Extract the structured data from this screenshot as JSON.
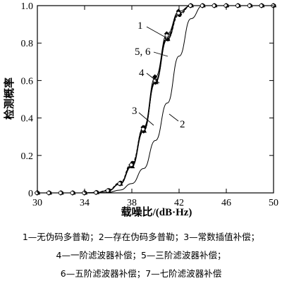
{
  "chart_data": {
    "type": "line",
    "xlabel": "载噪比/(dB·Hz)",
    "ylabel": "检测概率",
    "xlim": [
      30,
      50
    ],
    "ylim": [
      0,
      1.0
    ],
    "x_ticks": [
      "30",
      "34",
      "38",
      "42",
      "46",
      "50"
    ],
    "y_ticks": [
      "0",
      "0.2",
      "0.4",
      "0.6",
      "0.8",
      "1.0"
    ],
    "grid": false,
    "x": [
      30,
      31,
      32,
      33,
      34,
      35,
      36,
      37,
      38,
      39,
      40,
      41,
      42,
      43,
      44,
      45,
      46,
      47,
      48,
      49,
      50
    ],
    "series": [
      {
        "name": "1",
        "values": [
          0,
          0,
          0,
          0,
          0,
          0.002,
          0.012,
          0.05,
          0.15,
          0.35,
          0.62,
          0.85,
          0.97,
          1.0,
          1.0,
          1.0,
          1.0,
          1.0,
          1.0,
          1.0,
          1.0
        ]
      },
      {
        "name": "2",
        "values": [
          0,
          0,
          0,
          0,
          0,
          0,
          0.003,
          0.015,
          0.05,
          0.13,
          0.28,
          0.48,
          0.73,
          0.93,
          1.0,
          1.0,
          1.0,
          1.0,
          1.0,
          1.0,
          1.0
        ]
      },
      {
        "name": "3",
        "values": [
          0,
          0,
          0,
          0,
          0,
          0.003,
          0.015,
          0.055,
          0.16,
          0.35,
          0.6,
          0.82,
          0.95,
          1.0,
          1.0,
          1.0,
          1.0,
          1.0,
          1.0,
          1.0,
          1.0
        ]
      },
      {
        "name": "4",
        "values": [
          0,
          0,
          0,
          0,
          0,
          0.002,
          0.012,
          0.05,
          0.15,
          0.34,
          0.6,
          0.83,
          0.96,
          1.0,
          1.0,
          1.0,
          1.0,
          1.0,
          1.0,
          1.0,
          1.0
        ]
      },
      {
        "name": "5",
        "values": [
          0,
          0,
          0,
          0,
          0,
          0.002,
          0.011,
          0.048,
          0.145,
          0.33,
          0.59,
          0.83,
          0.96,
          1.0,
          1.0,
          1.0,
          1.0,
          1.0,
          1.0,
          1.0,
          1.0
        ]
      },
      {
        "name": "6",
        "values": [
          0,
          0,
          0,
          0,
          0,
          0.002,
          0.011,
          0.047,
          0.14,
          0.33,
          0.59,
          0.82,
          0.96,
          1.0,
          1.0,
          1.0,
          1.0,
          1.0,
          1.0,
          1.0,
          1.0
        ]
      },
      {
        "name": "7",
        "values": [
          0,
          0,
          0,
          0,
          0,
          0.002,
          0.012,
          0.05,
          0.15,
          0.34,
          0.6,
          0.84,
          0.96,
          1.0,
          1.0,
          1.0,
          1.0,
          1.0,
          1.0,
          1.0,
          1.0
        ]
      }
    ],
    "curve_labels": [
      {
        "text": "1",
        "series": "1"
      },
      {
        "text": "2",
        "series": "2"
      },
      {
        "text": "3",
        "series": "3"
      },
      {
        "text": "4",
        "series": "4"
      },
      {
        "text": "5, 6",
        "series": "5"
      }
    ]
  },
  "caption": {
    "line1": "1—无伪码多普勒；2—存在伪码多普勒；3—常数插值补偿；",
    "line2": "4—一阶滤波器补偿；5—三阶滤波器补偿；",
    "line3": "6—五阶滤波器补偿；7—七阶滤波器补偿"
  }
}
